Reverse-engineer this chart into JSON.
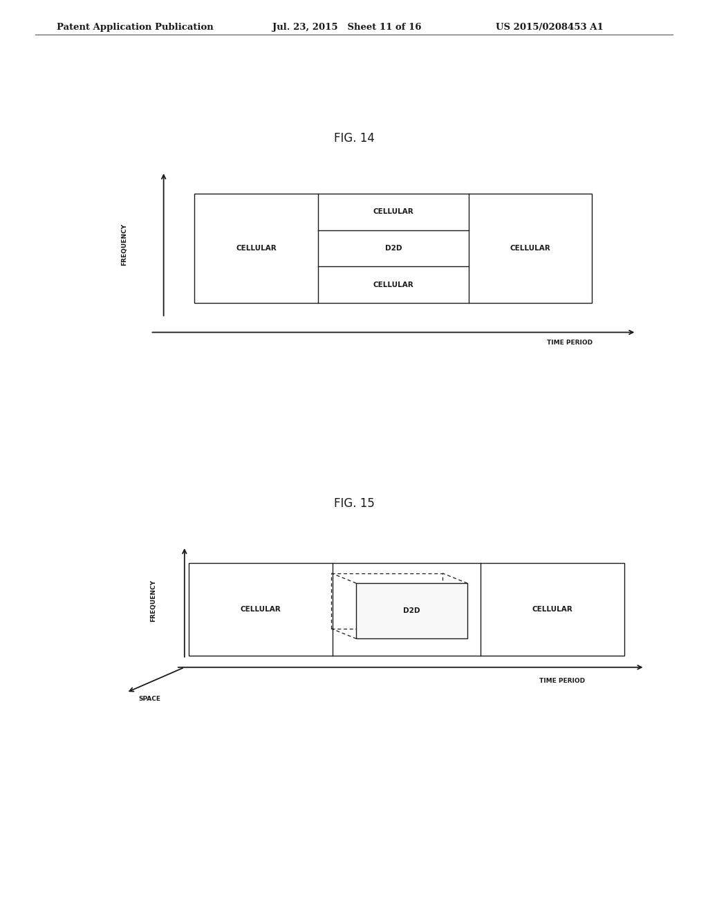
{
  "background_color": "#ffffff",
  "header_left": "Patent Application Publication",
  "header_center": "Jul. 23, 2015   Sheet 11 of 16",
  "header_right": "US 2015/0208453 A1",
  "fig14_title": "FIG. 14",
  "fig15_title": "FIG. 15",
  "label_cellular": "CELLULAR",
  "label_d2d": "D2D",
  "label_frequency": "FREQUENCY",
  "label_time_period": "TIME PERIOD",
  "label_space": "SPACE",
  "text_color": "#1a1a1a",
  "box_edge_color": "#1a1a1a",
  "box_fill_color": "#ffffff",
  "dashed_line_color": "#1a1a1a",
  "font_size_header": 9.5,
  "font_size_title": 12,
  "font_size_label": 7.5,
  "font_size_axis": 7.0
}
